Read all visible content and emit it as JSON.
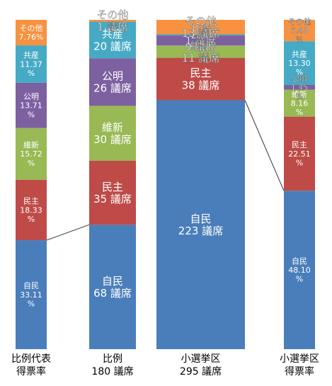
{
  "chart_data": {
    "type": "bar",
    "stacked": true,
    "categories": [
      "比例代表 得票率",
      "比例 180 議席",
      "小選挙区 295 議席",
      "小選挙区 得票率"
    ],
    "category_lines": [
      [
        "比例代表",
        "得票率"
      ],
      [
        "比例",
        "180 議席"
      ],
      [
        "小選挙区",
        "295 議席"
      ],
      [
        "小選挙区",
        "得票率"
      ]
    ],
    "series": [
      {
        "name": "自民",
        "color": "#4a7ebb",
        "values": [
          33.11,
          68,
          223,
          48.1
        ],
        "labels": [
          "33.11 %",
          "68 議席",
          "223 議席",
          "48.10 %"
        ]
      },
      {
        "name": "民主",
        "color": "#be4b48",
        "values": [
          18.33,
          35,
          38,
          22.51
        ],
        "labels": [
          "18.33 %",
          "35 議席",
          "38 議席",
          "22.51 %"
        ]
      },
      {
        "name": "維新",
        "color": "#98b954",
        "values": [
          15.72,
          30,
          11,
          8.16
        ],
        "labels": [
          "15.72 %",
          "30 議席",
          "11 議席",
          "8.16 %"
        ]
      },
      {
        "name": "公明",
        "color": "#7d60a0",
        "values": [
          13.71,
          26,
          9,
          1.45
        ],
        "labels": [
          "13.71 %",
          "26 議席",
          "9 議席",
          "1.45 %"
        ]
      },
      {
        "name": "共産",
        "color": "#46aac5",
        "values": [
          11.37,
          20,
          1,
          13.3
        ],
        "labels": [
          "11.37 %",
          "20 議席",
          "1 議席",
          "13.30 %"
        ]
      },
      {
        "name": "その他",
        "color": "#f69240",
        "values": [
          7.76,
          1,
          13,
          6.48
        ],
        "labels": [
          "7.76%",
          "1 議席",
          "13 議席",
          "6.48 %"
        ]
      }
    ]
  }
}
